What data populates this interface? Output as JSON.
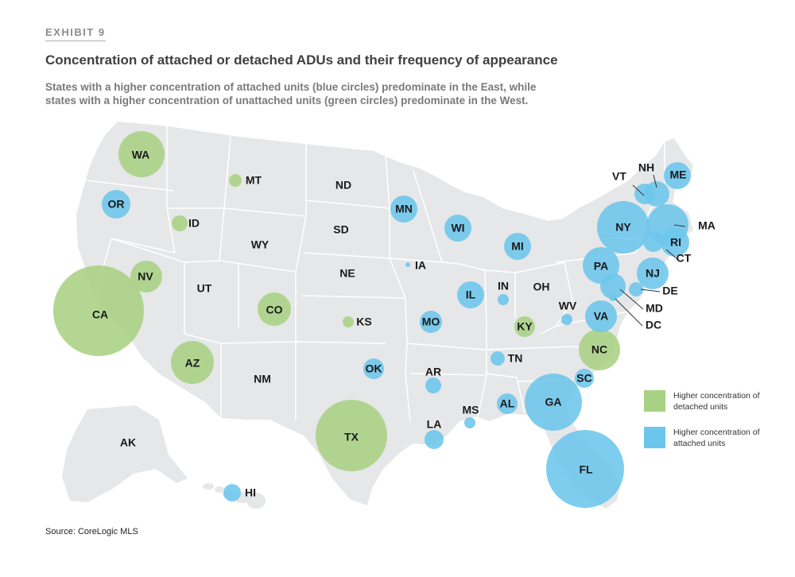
{
  "header": {
    "exhibit": "EXHIBIT 9",
    "title": "Concentration of attached or detached ADUs and their frequency of appearance",
    "subtitle_line1": "States with a higher concentration of attached units (blue circles) predominate in the East, while",
    "subtitle_line2": "states with a higher concentration of unattached units (green circles) predominate in the West."
  },
  "colors": {
    "land": "#e6e7e8",
    "border": "#ffffff",
    "detached": "#a8d283",
    "attached": "#6cc6ec",
    "label": "#1a1a1a"
  },
  "legend": {
    "detached_label": "Higher concentration of detached units",
    "attached_label": "Higher concentration of attached units"
  },
  "states": [
    {
      "abbr": "WA",
      "type": "detached",
      "size": "large"
    },
    {
      "abbr": "OR",
      "type": "attached",
      "size": "medium"
    },
    {
      "abbr": "CA",
      "type": "detached",
      "size": "very large"
    },
    {
      "abbr": "NV",
      "type": "detached",
      "size": "medium"
    },
    {
      "abbr": "ID",
      "type": "detached",
      "size": "small"
    },
    {
      "abbr": "MT",
      "type": "detached",
      "size": "small"
    },
    {
      "abbr": "WY",
      "type": "none"
    },
    {
      "abbr": "UT",
      "type": "none"
    },
    {
      "abbr": "CO",
      "type": "detached",
      "size": "medium"
    },
    {
      "abbr": "AZ",
      "type": "detached",
      "size": "large"
    },
    {
      "abbr": "NM",
      "type": "none"
    },
    {
      "abbr": "ND",
      "type": "none"
    },
    {
      "abbr": "SD",
      "type": "none"
    },
    {
      "abbr": "NE",
      "type": "none"
    },
    {
      "abbr": "KS",
      "type": "detached",
      "size": "small"
    },
    {
      "abbr": "OK",
      "type": "attached",
      "size": "small"
    },
    {
      "abbr": "TX",
      "type": "detached",
      "size": "very large"
    },
    {
      "abbr": "MN",
      "type": "attached",
      "size": "medium"
    },
    {
      "abbr": "IA",
      "type": "attached",
      "size": "tiny"
    },
    {
      "abbr": "MO",
      "type": "attached",
      "size": "small"
    },
    {
      "abbr": "AR",
      "type": "attached",
      "size": "small"
    },
    {
      "abbr": "LA",
      "type": "attached",
      "size": "small"
    },
    {
      "abbr": "WI",
      "type": "attached",
      "size": "medium"
    },
    {
      "abbr": "IL",
      "type": "attached",
      "size": "medium"
    },
    {
      "abbr": "MI",
      "type": "attached",
      "size": "medium"
    },
    {
      "abbr": "IN",
      "type": "attached",
      "size": "small"
    },
    {
      "abbr": "OH",
      "type": "none"
    },
    {
      "abbr": "KY",
      "type": "detached",
      "size": "small"
    },
    {
      "abbr": "TN",
      "type": "attached",
      "size": "small"
    },
    {
      "abbr": "MS",
      "type": "attached",
      "size": "small"
    },
    {
      "abbr": "AL",
      "type": "attached",
      "size": "small"
    },
    {
      "abbr": "GA",
      "type": "attached",
      "size": "large"
    },
    {
      "abbr": "FL",
      "type": "attached",
      "size": "very large"
    },
    {
      "abbr": "SC",
      "type": "attached",
      "size": "small"
    },
    {
      "abbr": "NC",
      "type": "detached",
      "size": "large"
    },
    {
      "abbr": "VA",
      "type": "attached",
      "size": "medium"
    },
    {
      "abbr": "WV",
      "type": "attached",
      "size": "small"
    },
    {
      "abbr": "PA",
      "type": "attached",
      "size": "medium"
    },
    {
      "abbr": "NY",
      "type": "attached",
      "size": "large"
    },
    {
      "abbr": "NJ",
      "type": "attached",
      "size": "medium"
    },
    {
      "abbr": "DE",
      "type": "attached",
      "size": "small"
    },
    {
      "abbr": "MD",
      "type": "attached",
      "size": "medium"
    },
    {
      "abbr": "DC",
      "type": "attached",
      "size": "small"
    },
    {
      "abbr": "CT",
      "type": "attached",
      "size": "small"
    },
    {
      "abbr": "RI",
      "type": "attached",
      "size": "medium"
    },
    {
      "abbr": "MA",
      "type": "attached",
      "size": "large"
    },
    {
      "abbr": "VT",
      "type": "attached",
      "size": "small"
    },
    {
      "abbr": "NH",
      "type": "attached",
      "size": "small"
    },
    {
      "abbr": "ME",
      "type": "attached",
      "size": "medium"
    },
    {
      "abbr": "AK",
      "type": "none"
    },
    {
      "abbr": "HI",
      "type": "attached",
      "size": "small"
    }
  ],
  "source": "Source: CoreLogic MLS"
}
